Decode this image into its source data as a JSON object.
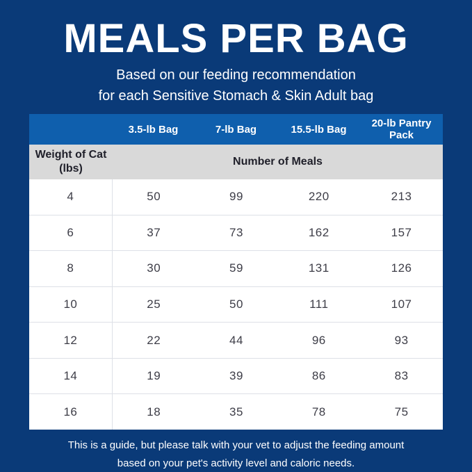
{
  "page": {
    "title": "MEALS PER BAG",
    "subtitle_line1": "Based on our feeding recommendation",
    "subtitle_line2": "for each Sensitive Stomach & Skin Adult bag",
    "footer_line1": "This is a guide, but please talk with your vet to adjust the feeding amount",
    "footer_line2": "based on your pet's activity level and caloric needs."
  },
  "table": {
    "bag_columns": [
      "3.5-lb Bag",
      "7-lb Bag",
      "15.5-lb Bag",
      "20-lb Pantry Pack"
    ],
    "weight_header_line1": "Weight of Cat",
    "weight_header_line2": "(lbs)",
    "meals_header": "Number of Meals",
    "rows": [
      {
        "weight": "4",
        "meals": [
          "50",
          "99",
          "220",
          "213"
        ]
      },
      {
        "weight": "6",
        "meals": [
          "37",
          "73",
          "162",
          "157"
        ]
      },
      {
        "weight": "8",
        "meals": [
          "30",
          "59",
          "131",
          "126"
        ]
      },
      {
        "weight": "10",
        "meals": [
          "25",
          "50",
          "111",
          "107"
        ]
      },
      {
        "weight": "12",
        "meals": [
          "22",
          "44",
          "96",
          "93"
        ]
      },
      {
        "weight": "14",
        "meals": [
          "19",
          "39",
          "86",
          "83"
        ]
      },
      {
        "weight": "16",
        "meals": [
          "18",
          "35",
          "78",
          "75"
        ]
      }
    ]
  },
  "colors": {
    "background_navy": "#0a3a78",
    "header_row_blue": "#0f5fad",
    "subheader_gray": "#d9d9d9",
    "cell_text": "#3d3d47",
    "divider": "#dde0e7",
    "text_white": "#ffffff"
  },
  "chart_data": {
    "type": "table",
    "title": "MEALS PER BAG",
    "subtitle": "Based on our feeding recommendation for each Sensitive Stomach & Skin Adult bag",
    "columns": [
      "Weight of Cat (lbs)",
      "3.5-lb Bag",
      "7-lb Bag",
      "15.5-lb Bag",
      "20-lb Pantry Pack"
    ],
    "value_label": "Number of Meals",
    "rows": [
      [
        4,
        50,
        99,
        220,
        213
      ],
      [
        6,
        37,
        73,
        162,
        157
      ],
      [
        8,
        30,
        59,
        131,
        126
      ],
      [
        10,
        25,
        50,
        111,
        107
      ],
      [
        12,
        22,
        44,
        96,
        93
      ],
      [
        14,
        19,
        39,
        86,
        83
      ],
      [
        16,
        18,
        35,
        78,
        75
      ]
    ],
    "footnote": "This is a guide, but please talk with your vet to adjust the feeding amount based on your pet's activity level and caloric needs."
  }
}
